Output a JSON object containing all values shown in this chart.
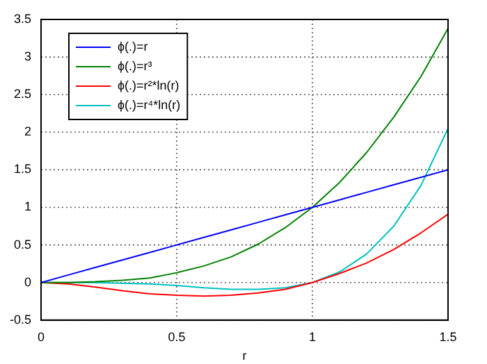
{
  "chart_data": {
    "type": "line",
    "xlabel": "r",
    "x": [
      0,
      0.1,
      0.2,
      0.3,
      0.4,
      0.5,
      0.6,
      0.7,
      0.8,
      0.9,
      1,
      1.1,
      1.2,
      1.3,
      1.4,
      1.5
    ],
    "series": [
      {
        "name": "ϕ(.)=r",
        "color": "#0000ff",
        "values": [
          0,
          0.1,
          0.2,
          0.3,
          0.4,
          0.5,
          0.6,
          0.7,
          0.8,
          0.9,
          1,
          1.1,
          1.2,
          1.3,
          1.4,
          1.5
        ]
      },
      {
        "name": "ϕ(.)=r³",
        "color": "#008000",
        "values": [
          0,
          0,
          0.01,
          0.03,
          0.06,
          0.13,
          0.22,
          0.34,
          0.51,
          0.73,
          1,
          1.33,
          1.73,
          2.2,
          2.74,
          3.38
        ]
      },
      {
        "name": "ϕ(.)=r²*ln(r)",
        "color": "#ff0000",
        "values": [
          0,
          -0.02,
          -0.06,
          -0.11,
          -0.15,
          -0.17,
          -0.18,
          -0.17,
          -0.14,
          -0.09,
          0,
          0.12,
          0.26,
          0.44,
          0.66,
          0.91
        ]
      },
      {
        "name": "ϕ(.)=r⁴*ln(r)",
        "color": "#00bfbf",
        "values": [
          0,
          0,
          0,
          -0.01,
          -0.02,
          -0.04,
          -0.07,
          -0.09,
          -0.09,
          -0.07,
          0,
          0.14,
          0.38,
          0.75,
          1.29,
          2.05
        ]
      }
    ],
    "xlim": [
      0,
      1.5
    ],
    "xticks": [
      0,
      0.5,
      1,
      1.5
    ],
    "ylim": [
      -0.5,
      3.5
    ],
    "yticks": [
      -0.5,
      0,
      0.5,
      1,
      1.5,
      2,
      2.5,
      3,
      3.5
    ],
    "grid": true,
    "legend": "top left",
    "marker": "none",
    "line_style": "solid"
  }
}
